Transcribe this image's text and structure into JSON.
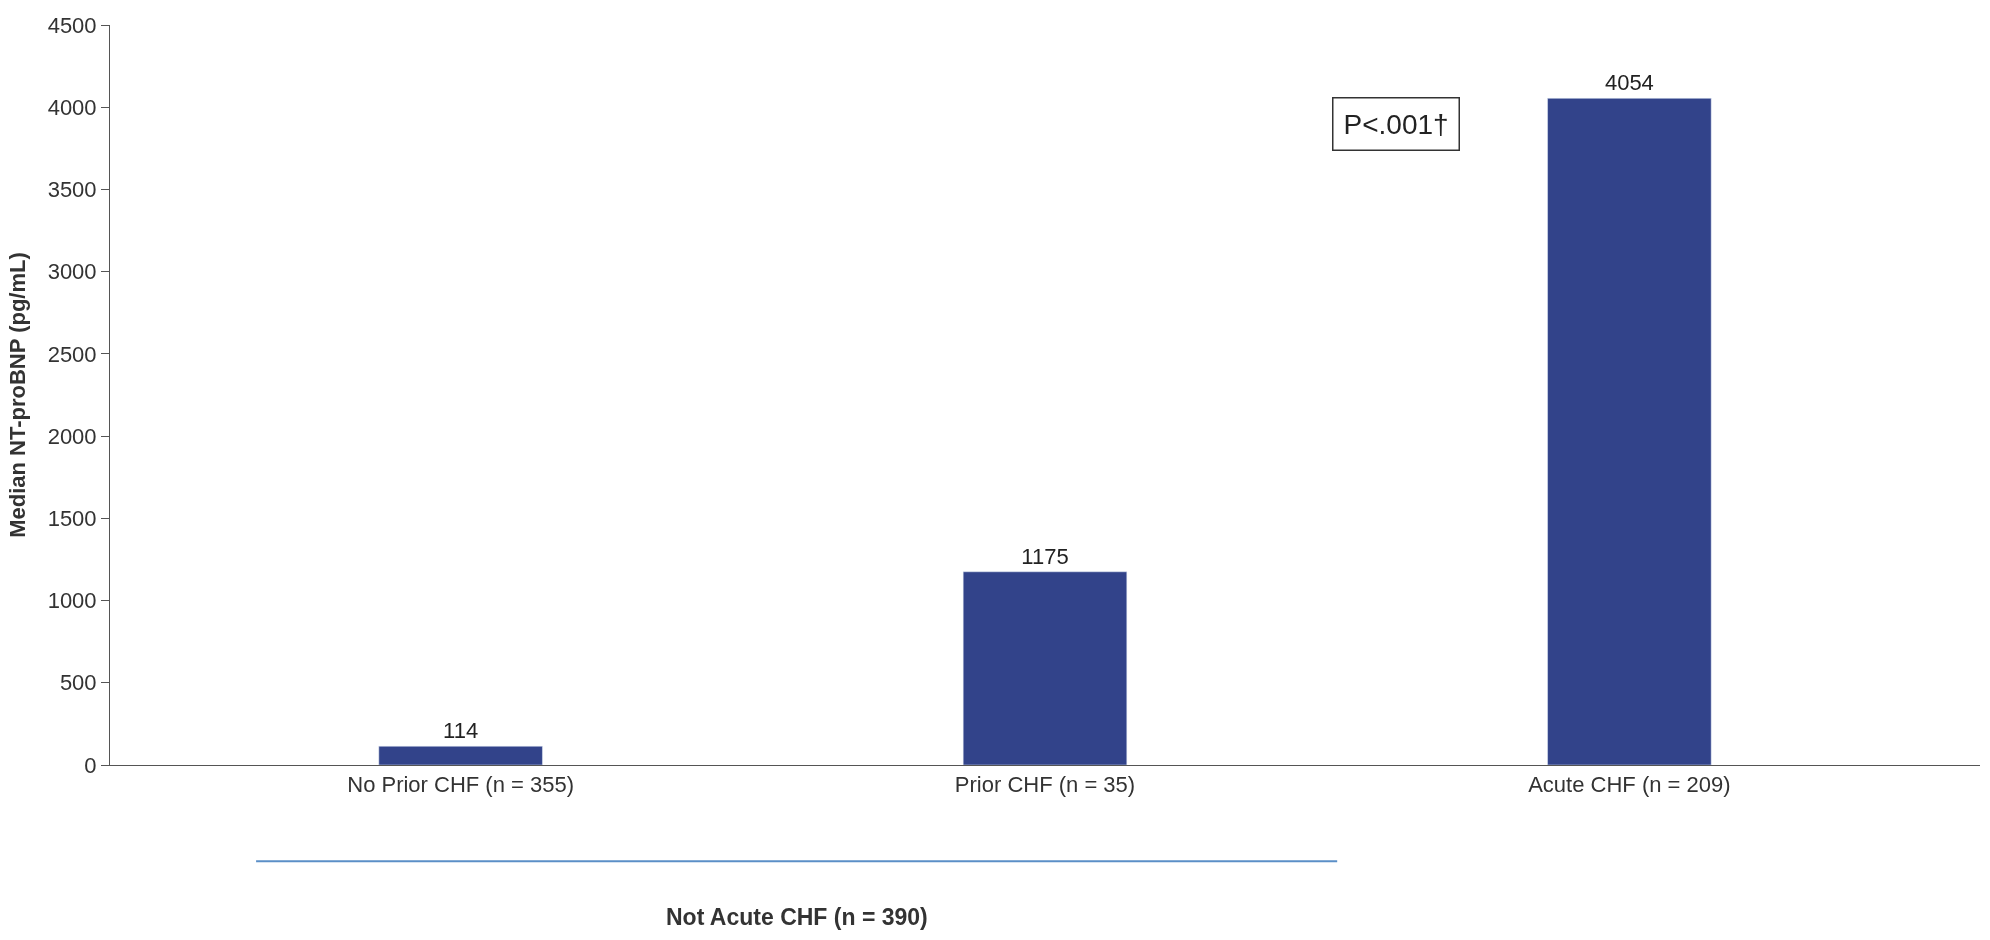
{
  "chart_data": {
    "type": "bar",
    "categories": [
      "No Prior CHF (n = 355)",
      "Prior CHF (n = 35)",
      "Acute CHF (n = 209)"
    ],
    "values": [
      114,
      1175,
      4054
    ],
    "color": "#32438a",
    "ylabel": "Median NT-proBNP (pg/mL)",
    "ylim": [
      0,
      4500
    ],
    "yticks": [
      0,
      500,
      1000,
      1500,
      2000,
      2500,
      3000,
      3500,
      4000,
      4500
    ],
    "data_labels": true,
    "annotations": [
      "P<.001†",
      "Not Acute CHF (n = 390)"
    ]
  }
}
